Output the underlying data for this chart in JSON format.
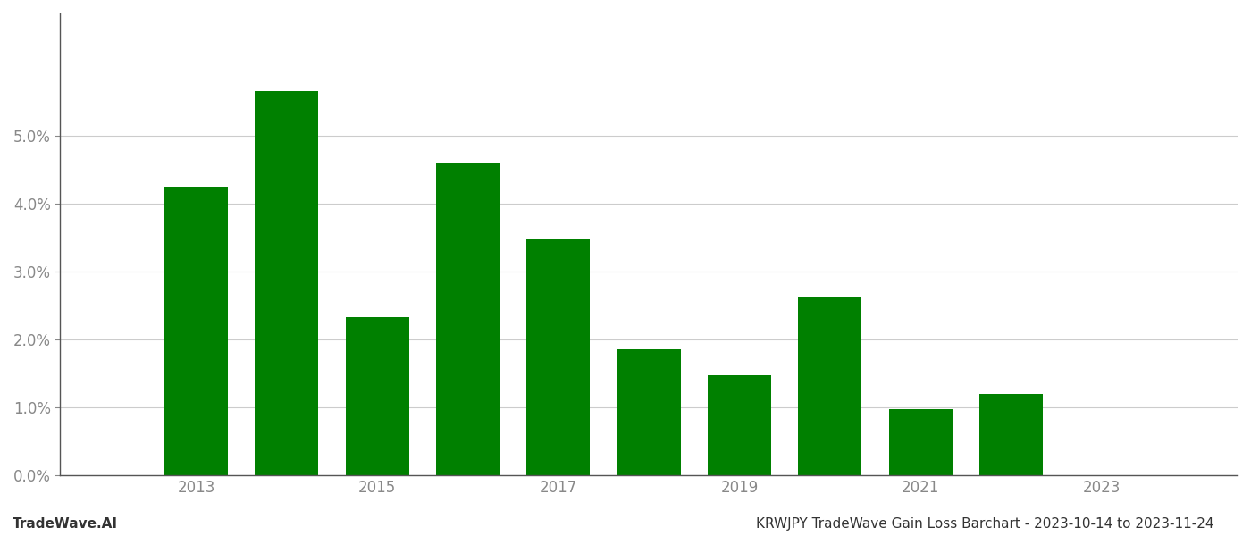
{
  "years": [
    2013,
    2014,
    2015,
    2016,
    2017,
    2018,
    2019,
    2020,
    2021,
    2022,
    2023
  ],
  "values": [
    0.0425,
    0.0565,
    0.0233,
    0.046,
    0.0347,
    0.0185,
    0.0147,
    0.0263,
    0.0097,
    0.012,
    0.0
  ],
  "bar_color": "#008000",
  "background_color": "#ffffff",
  "grid_color": "#cccccc",
  "axis_color": "#555555",
  "ylabel_color": "#888888",
  "xlabel_color": "#888888",
  "title_text": "KRWJPY TradeWave Gain Loss Barchart - 2023-10-14 to 2023-11-24",
  "watermark_text": "TradeWave.AI",
  "title_fontsize": 11,
  "watermark_fontsize": 11,
  "tick_fontsize": 12,
  "ylim": [
    0.0,
    0.068
  ],
  "yticks": [
    0.0,
    0.01,
    0.02,
    0.03,
    0.04,
    0.05
  ],
  "xtick_labels": [
    "2013",
    "2015",
    "2017",
    "2019",
    "2021",
    "2023"
  ],
  "xtick_positions": [
    2013,
    2015,
    2017,
    2019,
    2021,
    2023
  ],
  "xlim": [
    2011.5,
    2024.5
  ],
  "bar_width": 0.7
}
